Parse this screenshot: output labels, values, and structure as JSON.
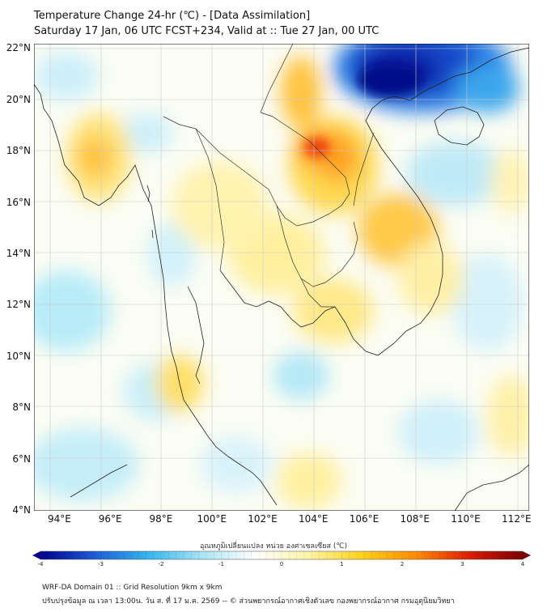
{
  "header": {
    "title": "Temperature Change 24-hr (℃) - [Data Assimilation]",
    "subtitle": "Saturday 17 Jan, 06 UTC FCST+234, Valid at :: Tue 27 Jan, 00 UTC"
  },
  "map": {
    "lat_range": [
      4,
      22.2
    ],
    "lon_range": [
      93,
      112.5
    ],
    "lat_labels": [
      "22°N",
      "20°N",
      "18°N",
      "16°N",
      "14°N",
      "12°N",
      "10°N",
      "8°N",
      "6°N",
      "4°N"
    ],
    "lat_values": [
      22,
      20,
      18,
      16,
      14,
      12,
      10,
      8,
      6,
      4
    ],
    "lon_labels": [
      "94°E",
      "96°E",
      "98°E",
      "100°E",
      "102°E",
      "104°E",
      "106°E",
      "108°E",
      "110°E",
      "112°E"
    ],
    "lon_values": [
      94,
      96,
      98,
      100,
      102,
      104,
      106,
      108,
      110,
      112
    ]
  },
  "colorbar": {
    "title": "อุณหภูมิเปลี่ยนแปลง หน่วย องศาเซลเซียส (℃)",
    "min": -4,
    "max": 4,
    "tick_labels": [
      "-4",
      "-3",
      "-2",
      "-1",
      "0",
      "1",
      "2",
      "3",
      "4"
    ],
    "tick_values": [
      -4,
      -3,
      -2,
      -1,
      0,
      1,
      2,
      3,
      4
    ],
    "colors": [
      "#00008b",
      "#1e5bd6",
      "#33b5ee",
      "#a8e4f5",
      "#ffffff",
      "#fff5a8",
      "#ffd21c",
      "#ff8c00",
      "#dc1e00",
      "#7a0000"
    ]
  },
  "footer": {
    "line1": "WRF-DA Domain 01 :: Grid Resolution 9km x 9km",
    "line2": "ปรับปรุงข้อมูล ณ เวลา 13:00น. วัน ส. ที่ 17 ม.ค. 2569 -- © ส่วนพยากรณ์อากาศเชิงตัวเลข กองพยากรณ์อากาศ กรมอุตุนิยมวิทยา"
  }
}
